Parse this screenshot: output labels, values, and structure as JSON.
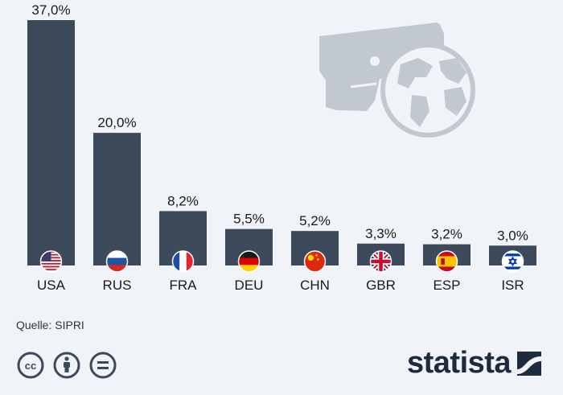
{
  "chart_data": {
    "type": "bar",
    "categories": [
      "USA",
      "RUS",
      "FRA",
      "DEU",
      "CHN",
      "GBR",
      "ESP",
      "ISR"
    ],
    "values": [
      37.0,
      20.0,
      8.2,
      5.5,
      5.2,
      3.3,
      3.2,
      3.0
    ],
    "value_labels": [
      "37,0%",
      "20,0%",
      "8,2%",
      "5,5%",
      "5,2%",
      "3,3%",
      "3,2%",
      "3,0%"
    ],
    "flags": [
      "flag-usa",
      "flag-russia",
      "flag-france",
      "flag-germany",
      "flag-china",
      "flag-uk",
      "flag-spain",
      "flag-israel"
    ],
    "ylim": [
      0,
      37.0
    ],
    "grid": false,
    "legend": "none",
    "bar_color": "#3c4a5c"
  },
  "source": "Quelle: SIPRI",
  "brand": "statista",
  "license_icons": [
    "cc-icon",
    "attribution-icon",
    "no-derivatives-icon"
  ],
  "illustration_icons": [
    "handgun-icon",
    "globe-icon"
  ],
  "colors": {
    "background": "#f0f4f8",
    "bar": "#3c4a5c",
    "illustration": "#c2c8cf",
    "brand": "#1d2b3d"
  }
}
